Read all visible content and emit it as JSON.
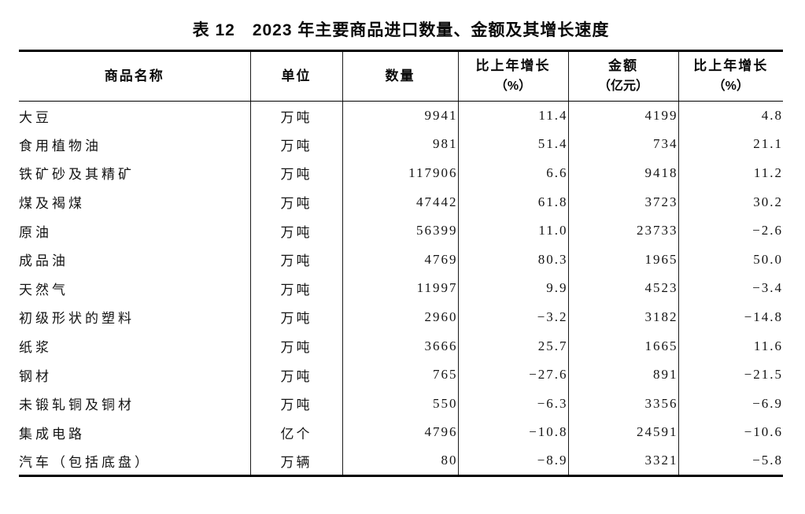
{
  "title": "表 12　2023 年主要商品进口数量、金额及其增长速度",
  "table": {
    "columns": [
      {
        "label": "商品名称",
        "sub": ""
      },
      {
        "label": "单位",
        "sub": ""
      },
      {
        "label": "数量",
        "sub": ""
      },
      {
        "label": "比上年增长",
        "sub": "（%）"
      },
      {
        "label": "金额",
        "sub": "（亿元）"
      },
      {
        "label": "比上年增长",
        "sub": "（%）"
      }
    ],
    "rows": [
      {
        "name": "大豆",
        "unit": "万吨",
        "quantity": "9941",
        "qty_growth": "11.4",
        "value": "4199",
        "val_growth": "4.8"
      },
      {
        "name": "食用植物油",
        "unit": "万吨",
        "quantity": "981",
        "qty_growth": "51.4",
        "value": "734",
        "val_growth": "21.1"
      },
      {
        "name": "铁矿砂及其精矿",
        "unit": "万吨",
        "quantity": "117906",
        "qty_growth": "6.6",
        "value": "9418",
        "val_growth": "11.2"
      },
      {
        "name": "煤及褐煤",
        "unit": "万吨",
        "quantity": "47442",
        "qty_growth": "61.8",
        "value": "3723",
        "val_growth": "30.2"
      },
      {
        "name": "原油",
        "unit": "万吨",
        "quantity": "56399",
        "qty_growth": "11.0",
        "value": "23733",
        "val_growth": "−2.6"
      },
      {
        "name": "成品油",
        "unit": "万吨",
        "quantity": "4769",
        "qty_growth": "80.3",
        "value": "1965",
        "val_growth": "50.0"
      },
      {
        "name": "天然气",
        "unit": "万吨",
        "quantity": "11997",
        "qty_growth": "9.9",
        "value": "4523",
        "val_growth": "−3.4"
      },
      {
        "name": "初级形状的塑料",
        "unit": "万吨",
        "quantity": "2960",
        "qty_growth": "−3.2",
        "value": "3182",
        "val_growth": "−14.8"
      },
      {
        "name": "纸浆",
        "unit": "万吨",
        "quantity": "3666",
        "qty_growth": "25.7",
        "value": "1665",
        "val_growth": "11.6"
      },
      {
        "name": "钢材",
        "unit": "万吨",
        "quantity": "765",
        "qty_growth": "−27.6",
        "value": "891",
        "val_growth": "−21.5"
      },
      {
        "name": "未锻轧铜及铜材",
        "unit": "万吨",
        "quantity": "550",
        "qty_growth": "−6.3",
        "value": "3356",
        "val_growth": "−6.9"
      },
      {
        "name": "集成电路",
        "unit": "亿个",
        "quantity": "4796",
        "qty_growth": "−10.8",
        "value": "24591",
        "val_growth": "−10.6"
      },
      {
        "name": "汽车（包括底盘）",
        "unit": "万辆",
        "quantity": "80",
        "qty_growth": "−8.9",
        "value": "3321",
        "val_growth": "−5.8"
      }
    ]
  }
}
